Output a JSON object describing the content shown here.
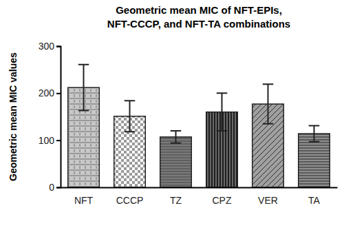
{
  "chart_data": {
    "type": "bar",
    "title": "Geometric mean MIC of NFT-EPIs,\nNFT-CCCP, and NFT-TA combinations",
    "y_label": "Geometric mean MIC values",
    "categories": [
      "NFT",
      "CCCP",
      "TZ",
      "CPZ",
      "VER",
      "TA"
    ],
    "values": [
      212,
      151,
      107,
      160,
      177,
      114
    ],
    "errors": [
      49,
      33,
      13,
      40,
      42,
      17
    ],
    "colors": [
      "#c8c8c8",
      "#9a9a9a",
      "#7a7a7a",
      "#1e1e1e",
      "#a0a0a0",
      "#5a5a5a"
    ],
    "ylim": [
      0,
      300
    ],
    "yticks": [
      0,
      100,
      200,
      300
    ],
    "grid": false
  }
}
